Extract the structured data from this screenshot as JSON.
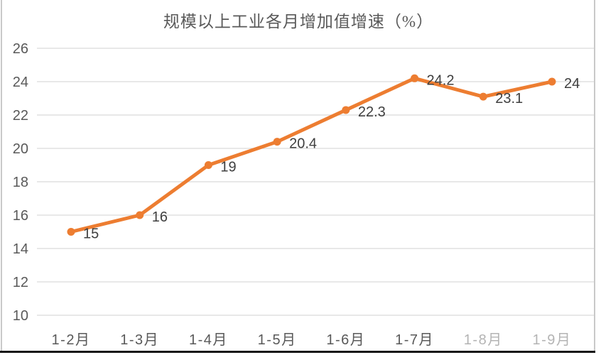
{
  "chart_data": {
    "type": "line",
    "title": "规模以上工业各月增加值增速（%）",
    "categories": [
      "1-2月",
      "1-3月",
      "1-4月",
      "1-5月",
      "1-6月",
      "1-7月",
      "1-8月",
      "1-9月"
    ],
    "values": [
      15,
      16,
      19,
      20.4,
      22.3,
      24.2,
      23.1,
      24
    ],
    "data_labels": [
      "15",
      "16",
      "19",
      "20.4",
      "22.3",
      "24.2",
      "23.1",
      "24"
    ],
    "xlabel": "",
    "ylabel": "",
    "ylim": [
      10,
      26
    ],
    "yticks": [
      10,
      12,
      14,
      16,
      18,
      20,
      22,
      24,
      26
    ],
    "grid": true,
    "legend": false,
    "marker": "circle",
    "faded_category_indexes": [
      6,
      7
    ],
    "colors": {
      "line": "#ED7D31",
      "gridline": "#D9D9D9",
      "axis_text": "#595959",
      "data_label_text": "#3F3F3F",
      "background": "#FFFFFF"
    }
  }
}
